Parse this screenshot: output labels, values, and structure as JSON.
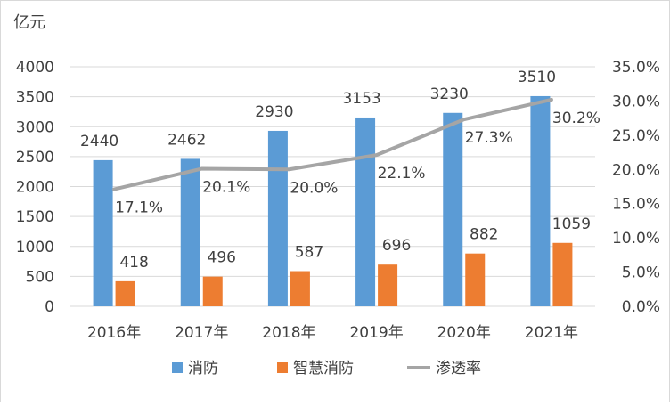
{
  "chart_data": {
    "type": "bar",
    "unit_label": "亿元",
    "categories": [
      "2016年",
      "2017年",
      "2018年",
      "2019年",
      "2020年",
      "2021年"
    ],
    "series": [
      {
        "name": "消防",
        "kind": "bar",
        "axis": "left",
        "color": "#5b9bd5",
        "values": [
          2440,
          2462,
          2930,
          3153,
          3230,
          3510
        ]
      },
      {
        "name": "智慧消防",
        "kind": "bar",
        "axis": "left",
        "color": "#ed7d31",
        "values": [
          418,
          496,
          587,
          696,
          882,
          1059
        ]
      },
      {
        "name": "渗透率",
        "kind": "line",
        "axis": "right",
        "color": "#a5a5a5",
        "values": [
          17.1,
          20.1,
          20.0,
          22.1,
          27.3,
          30.2
        ]
      }
    ],
    "y_left": {
      "min": 0,
      "max": 4000,
      "step": 500,
      "ticks": [
        "0",
        "500",
        "1000",
        "1500",
        "2000",
        "2500",
        "3000",
        "3500",
        "4000"
      ]
    },
    "y_right": {
      "min": 0,
      "max": 35,
      "step": 5,
      "ticks": [
        "0.0%",
        "5.0%",
        "10.0%",
        "15.0%",
        "20.0%",
        "25.0%",
        "30.0%",
        "35.0%"
      ]
    },
    "data_labels": {
      "消防": [
        "2440",
        "2462",
        "2930",
        "3153",
        "3230",
        "3510"
      ],
      "智慧消防": [
        "418",
        "496",
        "587",
        "696",
        "882",
        "1059"
      ],
      "渗透率": [
        "17.1%",
        "20.1%",
        "20.0%",
        "22.1%",
        "27.3%",
        "30.2%"
      ]
    },
    "gridlines": true,
    "legend_position": "bottom"
  }
}
